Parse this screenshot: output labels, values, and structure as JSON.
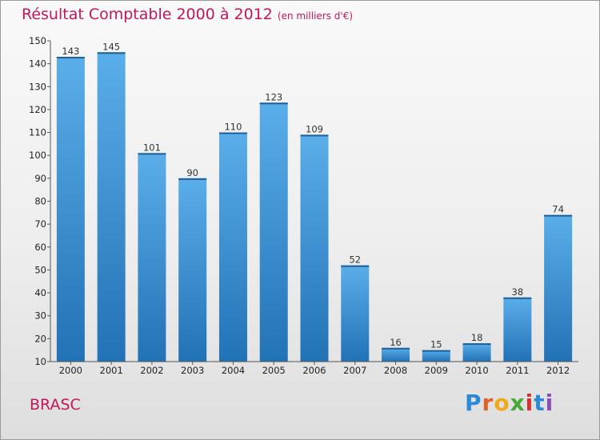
{
  "title": "Résultat Comptable 2000 à 2012",
  "unit_label": "(en milliers d'€)",
  "commune": "BRASC",
  "logo_text": "Proxiti",
  "colors": {
    "title": "#c2185b",
    "bar_top": "#5aaee9",
    "bar_bottom": "#2272b6"
  },
  "chart_data": {
    "type": "bar",
    "title": "Résultat Comptable 2000 à 2012",
    "xlabel": "",
    "ylabel": "",
    "categories": [
      "2000",
      "2001",
      "2002",
      "2003",
      "2004",
      "2005",
      "2006",
      "2007",
      "2008",
      "2009",
      "2010",
      "2011",
      "2012"
    ],
    "values": [
      143,
      145,
      101,
      90,
      110,
      123,
      109,
      52,
      16,
      15,
      18,
      38,
      74
    ],
    "data_labels": [
      "143",
      "145",
      "101",
      "90",
      "110",
      "123",
      "109",
      "52",
      "16",
      "15",
      "18",
      "38",
      "74"
    ],
    "ylim": [
      10,
      150
    ],
    "yticks": [
      10,
      20,
      30,
      40,
      50,
      60,
      70,
      80,
      90,
      100,
      110,
      120,
      130,
      140,
      150
    ],
    "grid": false,
    "legend": "none"
  }
}
